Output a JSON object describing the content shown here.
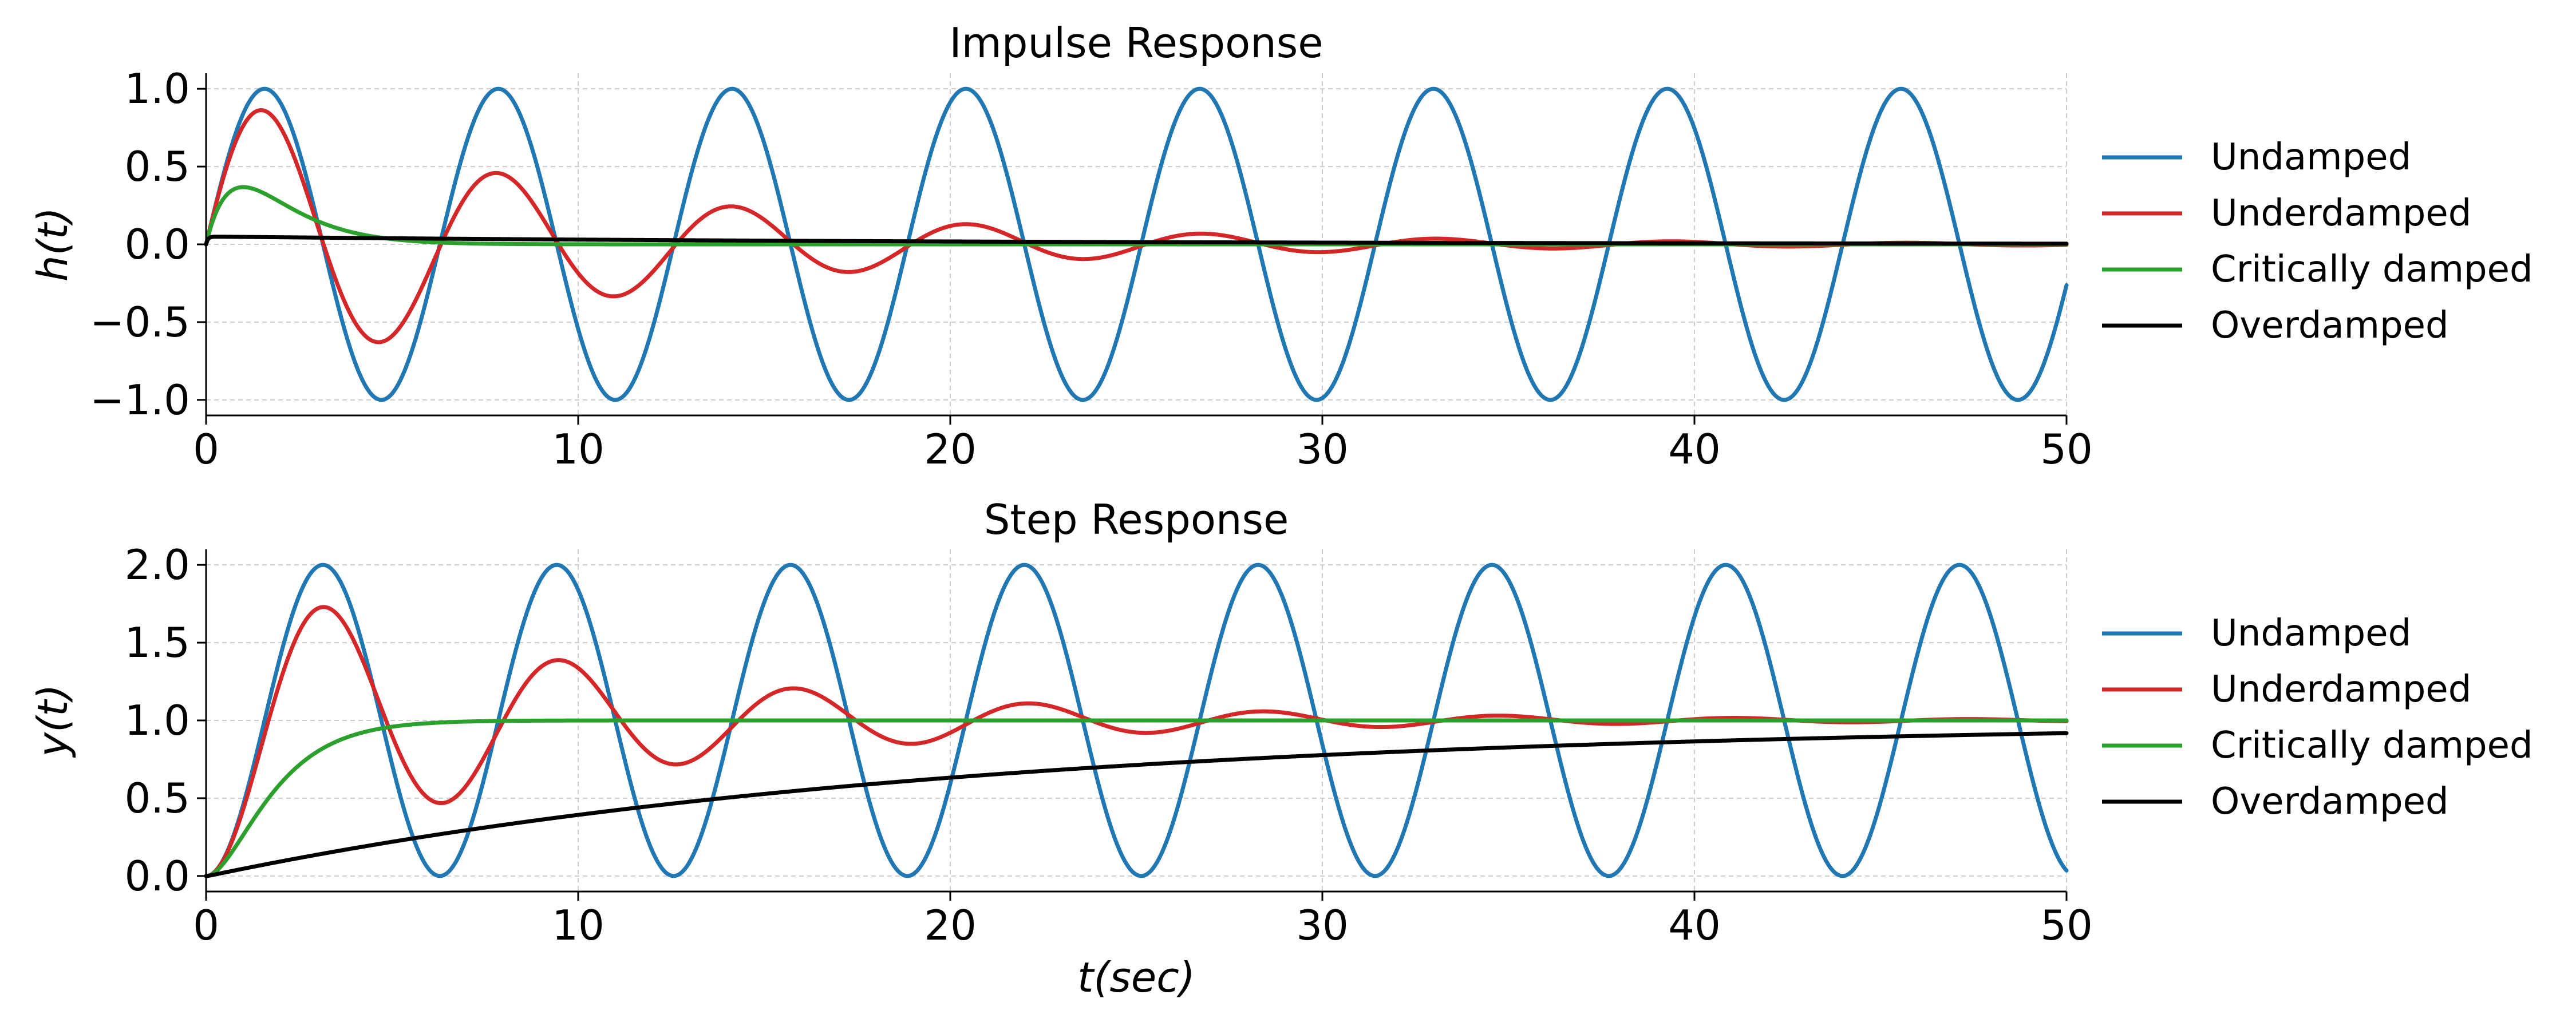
{
  "chart_data": [
    {
      "type": "line",
      "title": "Impulse Response",
      "xlabel": "",
      "ylabel": "h(t)",
      "xlim": [
        0,
        50
      ],
      "ylim": [
        -1.1,
        1.1
      ],
      "xticks": [
        0,
        10,
        20,
        30,
        40,
        50
      ],
      "xtick_labels": [
        "0",
        "10",
        "20",
        "30",
        "40",
        "50"
      ],
      "yticks": [
        -1.0,
        -0.5,
        0.0,
        0.5,
        1.0
      ],
      "ytick_labels": [
        "−1.0",
        "−0.5",
        "0.0",
        "0.5",
        "1.0"
      ],
      "grid": true,
      "legend_position": "right",
      "series": [
        {
          "name": "Undamped",
          "color": "#1f77b4",
          "kind": "impulse",
          "zeta": 0.0
        },
        {
          "name": "Underdamped",
          "color": "#d62728",
          "kind": "impulse",
          "zeta": 0.1
        },
        {
          "name": "Critically damped",
          "color": "#2ca02c",
          "kind": "impulse",
          "zeta": 1.0
        },
        {
          "name": "Overdamped",
          "color": "#000000",
          "kind": "impulse",
          "zeta": 10.0
        }
      ]
    },
    {
      "type": "line",
      "title": "Step Response",
      "xlabel": "t(sec)",
      "ylabel": "y(t)",
      "xlim": [
        0,
        50
      ],
      "ylim": [
        -0.1,
        2.1
      ],
      "xticks": [
        0,
        10,
        20,
        30,
        40,
        50
      ],
      "xtick_labels": [
        "0",
        "10",
        "20",
        "30",
        "40",
        "50"
      ],
      "yticks": [
        0.0,
        0.5,
        1.0,
        1.5,
        2.0
      ],
      "ytick_labels": [
        "0.0",
        "0.5",
        "1.0",
        "1.5",
        "2.0"
      ],
      "grid": true,
      "legend_position": "right",
      "series": [
        {
          "name": "Undamped",
          "color": "#1f77b4",
          "kind": "step",
          "zeta": 0.0
        },
        {
          "name": "Underdamped",
          "color": "#d62728",
          "kind": "step",
          "zeta": 0.1
        },
        {
          "name": "Critically damped",
          "color": "#2ca02c",
          "kind": "step",
          "zeta": 1.0
        },
        {
          "name": "Overdamped",
          "color": "#000000",
          "kind": "step",
          "zeta": 10.0
        }
      ]
    }
  ]
}
